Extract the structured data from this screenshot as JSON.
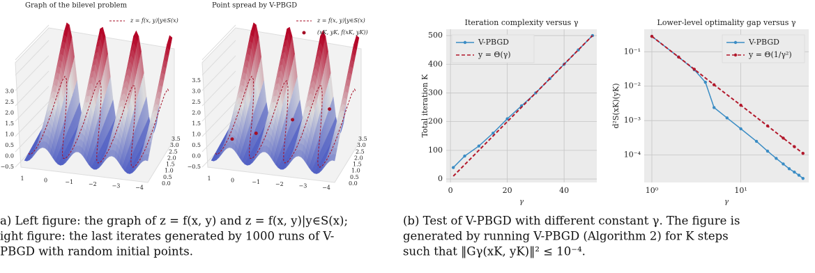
{
  "chart_data": [
    {
      "type": "surface3d",
      "title": "Graph of the bilevel problem",
      "legend": [
        {
          "label": "z = f(x, y)|y∈S(x)",
          "style": "dashed",
          "color": "#a50f26"
        }
      ],
      "zticks": [
        {
          "value": -0.5,
          "label": "−0.5"
        },
        {
          "value": 0.0,
          "label": "0.0"
        },
        {
          "value": 0.5,
          "label": "0.5"
        },
        {
          "value": 1.0,
          "label": "1.0"
        },
        {
          "value": 1.5,
          "label": "1.5"
        },
        {
          "value": 2.0,
          "label": "2.0"
        },
        {
          "value": 2.5,
          "label": "2.5"
        },
        {
          "value": 3.0,
          "label": "3.0"
        }
      ],
      "xticks": [
        1,
        0,
        {
          "value": -1,
          "label": "−1"
        },
        {
          "value": -2,
          "label": "−2"
        },
        {
          "value": -3,
          "label": "−3"
        },
        {
          "value": -4,
          "label": "−4"
        }
      ],
      "yticks": [
        {
          "value": 0.0,
          "label": "0.0"
        },
        {
          "value": 0.5,
          "label": "0.5"
        },
        {
          "value": 1.0,
          "label": "1.0"
        },
        {
          "value": 1.5,
          "label": "1.5"
        },
        {
          "value": 2.0,
          "label": "2.0"
        },
        {
          "value": 2.5,
          "label": "2.5"
        },
        {
          "value": 3.0,
          "label": "3.0"
        },
        {
          "value": 3.5,
          "label": "3.5"
        }
      ]
    },
    {
      "type": "surface3d",
      "title": "Point spread by V-PBGD",
      "legend": [
        {
          "label": "z = f(x, y)|y∈S(x)",
          "style": "dashed",
          "color": "#a50f26"
        },
        {
          "label": "(xK, yK, f(xK, yK))",
          "style": "dot",
          "color": "#a50f26"
        }
      ],
      "zticks": [
        {
          "value": -0.5,
          "label": "−0.5"
        },
        {
          "value": 0.0,
          "label": "0.0"
        },
        {
          "value": 0.5,
          "label": "0.5"
        },
        {
          "value": 1.0,
          "label": "1.0"
        },
        {
          "value": 1.5,
          "label": "1.5"
        },
        {
          "value": 2.0,
          "label": "2.0"
        },
        {
          "value": 2.5,
          "label": "2.5"
        },
        {
          "value": 3.0,
          "label": "3.0"
        },
        {
          "value": 3.5,
          "label": "3.5"
        }
      ],
      "xticks": [
        1,
        0,
        {
          "value": -1,
          "label": "−1"
        },
        {
          "value": -2,
          "label": "−2"
        },
        {
          "value": -3,
          "label": "−3"
        },
        {
          "value": -4,
          "label": "−4"
        }
      ],
      "yticks": [
        {
          "value": 0.0,
          "label": "0.0"
        },
        {
          "value": 0.5,
          "label": "0.5"
        },
        {
          "value": 1.0,
          "label": "1.0"
        },
        {
          "value": 1.5,
          "label": "1.5"
        },
        {
          "value": 2.0,
          "label": "2.0"
        },
        {
          "value": 2.5,
          "label": "2.5"
        },
        {
          "value": 3.0,
          "label": "3.0"
        },
        {
          "value": 3.5,
          "label": "3.5"
        }
      ]
    },
    {
      "type": "line",
      "title": "Iteration complexity versus γ",
      "xlabel": "γ",
      "ylabel": "Total iteration K",
      "xlim": [
        -1.5,
        51.5
      ],
      "ylim": [
        -12,
        522
      ],
      "xticks": [
        0,
        20,
        40
      ],
      "yticks": [
        0,
        100,
        200,
        300,
        400,
        500
      ],
      "log": false,
      "grid": true,
      "legend": "upper left",
      "series": [
        {
          "name": "V-PBGD",
          "color": "#3a8cc4",
          "dash": false,
          "marker": true,
          "x": [
            1,
            5,
            10,
            15,
            20,
            25,
            30,
            35,
            40,
            45,
            50
          ],
          "values": [
            40,
            80,
            115,
            160,
            210,
            255,
            300,
            350,
            400,
            450,
            500
          ]
        },
        {
          "name": "y = Θ(γ)",
          "color": "#b2182b",
          "dash": true,
          "marker": false,
          "x": [
            1,
            5,
            10,
            15,
            20,
            25,
            30,
            35,
            40,
            45,
            50
          ],
          "values": [
            10,
            50,
            100,
            150,
            200,
            250,
            300,
            350,
            400,
            450,
            500
          ]
        }
      ]
    },
    {
      "type": "line",
      "title": "Lower-level optimality gap versus γ",
      "xlabel": "γ",
      "ylabel": "d²S(xK)(yK)",
      "xlim": [
        0.82,
        58
      ],
      "ylim": [
        1.6e-05,
        0.45
      ],
      "xticks": [
        {
          "value": 1,
          "label": "10⁰"
        },
        {
          "value": 10,
          "label": "10¹"
        }
      ],
      "yticks": [
        {
          "value": 0.0001,
          "label": "10⁻⁴"
        },
        {
          "value": 0.001,
          "label": "10⁻³"
        },
        {
          "value": 0.01,
          "label": "10⁻²"
        },
        {
          "value": 0.1,
          "label": "10⁻¹"
        }
      ],
      "log": true,
      "grid": true,
      "legend": "upper right",
      "series": [
        {
          "name": "V-PBGD",
          "color": "#3a8cc4",
          "dash": false,
          "marker": true,
          "x": [
            1,
            2,
            3,
            4,
            5,
            7,
            10,
            15,
            20,
            25,
            30,
            35,
            40,
            45,
            50
          ],
          "values": [
            0.28,
            0.07,
            0.03,
            0.013,
            0.0024,
            0.0012,
            0.00058,
            0.00025,
            0.00013,
            8e-05,
            5.5e-05,
            4e-05,
            3.2e-05,
            2.6e-05,
            2.1e-05
          ]
        },
        {
          "name": "y = Θ(1/γ²)",
          "color": "#b2182b",
          "dash": true,
          "marker": true,
          "x": [
            1,
            2,
            3,
            5,
            10,
            20,
            30,
            40,
            50
          ],
          "values": [
            0.28,
            0.07,
            0.031,
            0.011,
            0.0028,
            0.0007,
            0.00031,
            0.000175,
            0.000112
          ]
        }
      ]
    }
  ],
  "captions": [
    {
      "lines": [
        "a) Left figure: the graph of z = f(x, y) and z = f(x, y)|y∈S(x);",
        "ight figure: the last iterates generated by 1000 runs of V-",
        "PBGD with random initial points."
      ]
    },
    {
      "lines": [
        "(b) Test of V-PBGD with different constant γ. The figure is",
        "generated by running V-PBGD (Algorithm 2) for K steps",
        "such that ‖Gγ(xK, yK)‖² ≤ 10⁻⁴."
      ]
    }
  ]
}
